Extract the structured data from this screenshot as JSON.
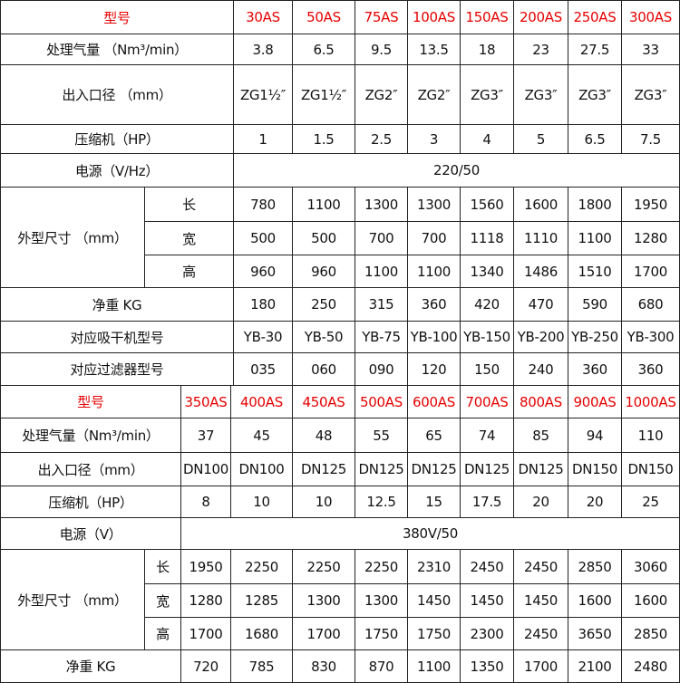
{
  "table1": {
    "header": {
      "label": "型号",
      "models": [
        "30AS",
        "50AS",
        "75AS",
        "100AS",
        "150AS",
        "200AS",
        "250AS",
        "300AS"
      ]
    },
    "airflow": {
      "label": "处理气量 （Nm³/min）",
      "values": [
        "3.8",
        "6.5",
        "9.5",
        "13.5",
        "18",
        "23",
        "27.5",
        "33"
      ]
    },
    "ports": {
      "label": "出入口径 （mm）",
      "values": [
        "ZG1½″",
        "ZG1½″",
        "ZG2″",
        "ZG2″",
        "ZG3″",
        "ZG3″",
        "ZG3″",
        "ZG3″"
      ]
    },
    "compressor": {
      "label": "压缩机（HP）",
      "values": [
        "1",
        "1.5",
        "2.5",
        "3",
        "4",
        "5",
        "6.5",
        "7.5"
      ]
    },
    "power": {
      "label": "电源（V/Hz）",
      "value": "220/50"
    },
    "dimensions": {
      "label": "外型尺寸 （mm）",
      "length": {
        "label": "长",
        "values": [
          "780",
          "1100",
          "1300",
          "1300",
          "1560",
          "1600",
          "1800",
          "1950"
        ]
      },
      "width": {
        "label": "宽",
        "values": [
          "500",
          "500",
          "700",
          "700",
          "1118",
          "1110",
          "1100",
          "1280"
        ]
      },
      "height": {
        "label": "高",
        "values": [
          "960",
          "960",
          "1100",
          "1100",
          "1340",
          "1486",
          "1510",
          "1700"
        ]
      }
    },
    "weight": {
      "label": "净重 KG",
      "values": [
        "180",
        "250",
        "315",
        "360",
        "420",
        "470",
        "590",
        "680"
      ]
    },
    "dryer": {
      "label": "对应吸干机型号",
      "values": [
        "YB-30",
        "YB-50",
        "YB-75",
        "YB-100",
        "YB-150",
        "YB-200",
        "YB-250",
        "YB-300"
      ]
    },
    "filter": {
      "label": "对应过滤器型号",
      "values": [
        "035",
        "060",
        "090",
        "120",
        "150",
        "240",
        "360",
        "360"
      ]
    }
  },
  "table2": {
    "header": {
      "label": "型号",
      "models": [
        "350AS",
        "400AS",
        "450AS",
        "500AS",
        "600AS",
        "700AS",
        "800AS",
        "900AS",
        "1000AS"
      ]
    },
    "airflow": {
      "label": "处理气量（Nm³/min）",
      "values": [
        "37",
        "45",
        "48",
        "55",
        "65",
        "74",
        "85",
        "94",
        "110"
      ]
    },
    "ports": {
      "label": "出入口径（mm）",
      "values": [
        "DN100",
        "DN100",
        "DN125",
        "DN125",
        "DN125",
        "DN125",
        "DN125",
        "DN150",
        "DN150"
      ]
    },
    "compressor": {
      "label": "压缩机（HP）",
      "values": [
        "8",
        "10",
        "10",
        "12.5",
        "15",
        "17.5",
        "20",
        "20",
        "25"
      ]
    },
    "power": {
      "label": "电源（V）",
      "value": "380V/50"
    },
    "dimensions": {
      "label": "外型尺寸 （mm）",
      "length": {
        "label": "长",
        "values": [
          "1950",
          "2250",
          "2250",
          "2250",
          "2310",
          "2450",
          "2450",
          "2850",
          "3060"
        ]
      },
      "width": {
        "label": "宽",
        "values": [
          "1280",
          "1285",
          "1300",
          "1300",
          "1450",
          "1450",
          "1450",
          "1600",
          "1600"
        ]
      },
      "height": {
        "label": "高",
        "values": [
          "1700",
          "1680",
          "1700",
          "1750",
          "1750",
          "2300",
          "2450",
          "3650",
          "2850"
        ]
      }
    },
    "weight": {
      "label": "净重 KG",
      "values": [
        "720",
        "785",
        "830",
        "870",
        "1100",
        "1350",
        "1700",
        "2100",
        "2480"
      ]
    }
  }
}
